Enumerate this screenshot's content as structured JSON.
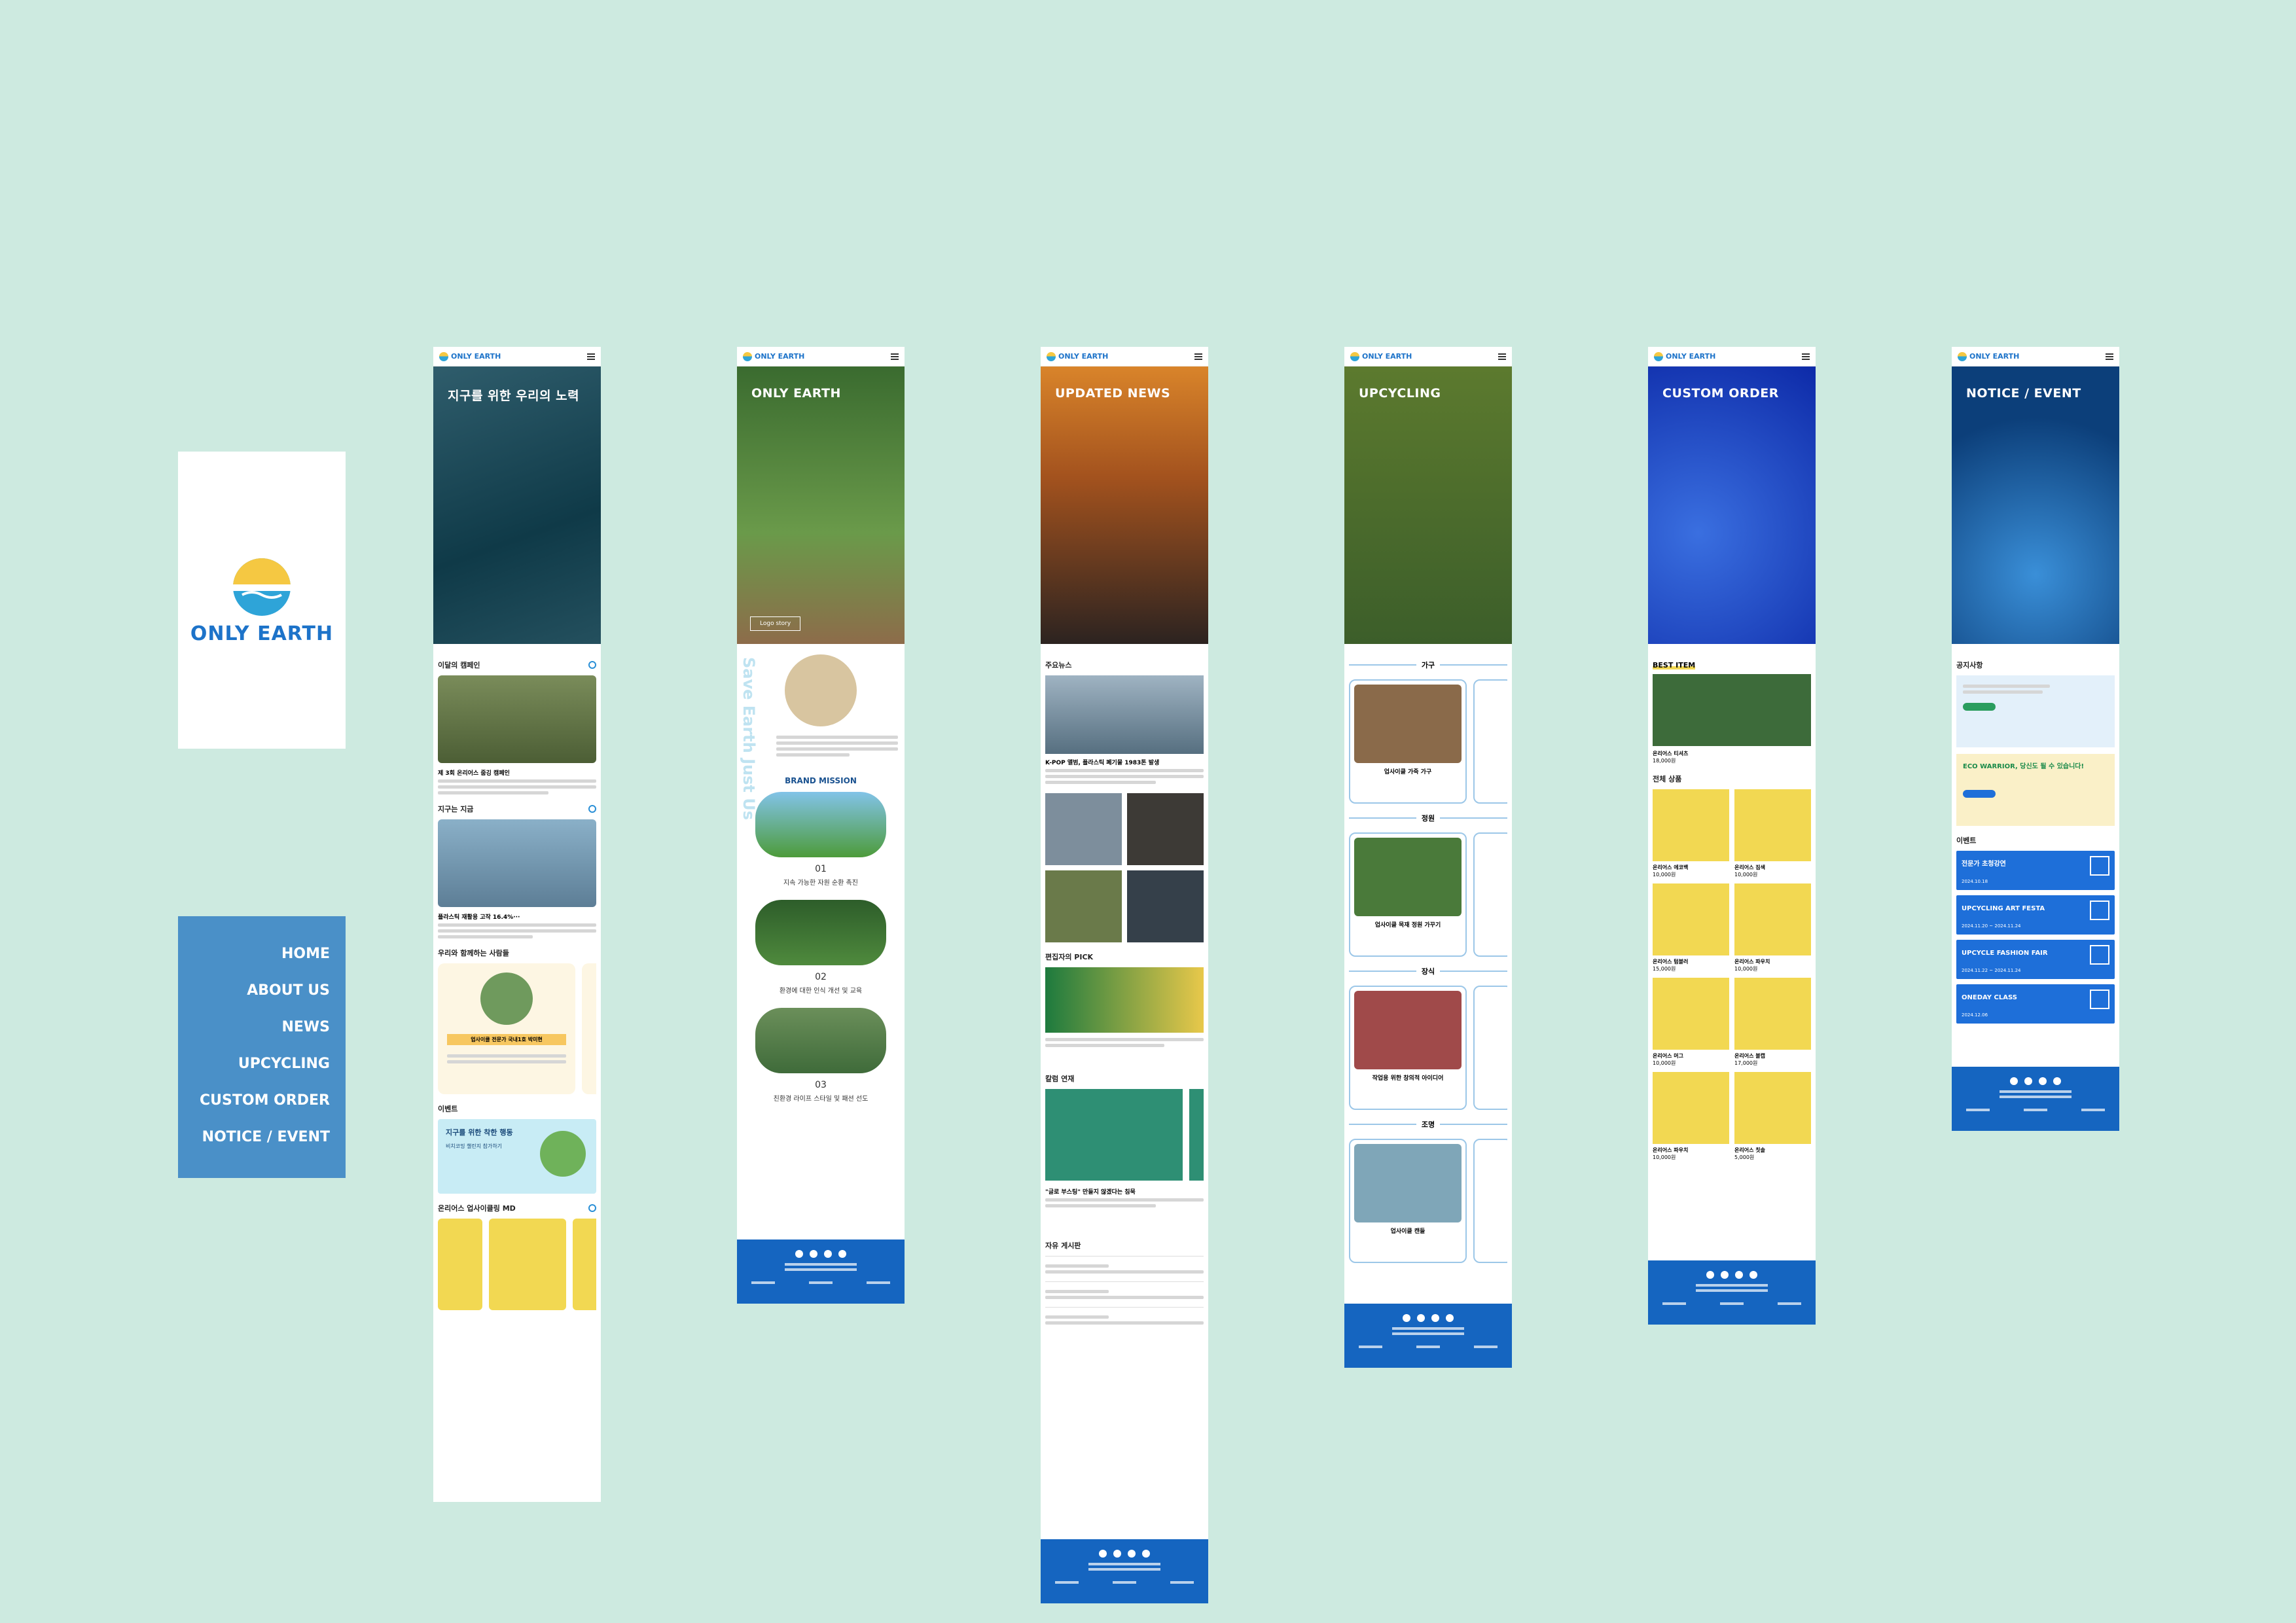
{
  "brand": {
    "name": "ONLY EARTH"
  },
  "nav": [
    "HOME",
    "ABOUT US",
    "NEWS",
    "UPCYCLING",
    "CUSTOM ORDER",
    "NOTICE / EVENT"
  ],
  "colors": {
    "background": "#cdeae0",
    "nav": "#4a90c8",
    "brand_blue": "#1d73c9",
    "footer": "#1565c0"
  },
  "home": {
    "hero_title": "지구를 위한 우리의 노력",
    "sections": [
      "이달의 캠페인",
      "지구는 지금",
      "우리와 함께하는 사람들",
      "이벤트",
      "온리어스 업사이클링 MD"
    ],
    "campaign_title": "제 3회 온리어스 줍깅 캠페인",
    "earth_now_title": "플라스틱 재활용 고작 16.4%···",
    "people_tag": "업사이클 전문가 국내1호 박미현",
    "event_title": "지구를 위한 착한 행동",
    "event_sub": "비치코밍 챌린지 참가하기"
  },
  "about": {
    "hero_title": "ONLY EARTH",
    "hero_btn": "Logo story",
    "vertical_text": "Save Earth Just Us",
    "mission_title": "BRAND MISSION",
    "missions": [
      {
        "num": "01",
        "text": "지속 가능한 자원 순환 촉진"
      },
      {
        "num": "02",
        "text": "환경에 대한 인식 개선 및 교육"
      },
      {
        "num": "03",
        "text": "친환경 라이프 스타일 및 패션 선도"
      }
    ]
  },
  "news": {
    "hero_title": "UPDATED NEWS",
    "sections": [
      "주요뉴스",
      "편집자의 PICK",
      "칼럼 연재",
      "자유 게시판"
    ],
    "main_news": "K-POP 앨범, 플라스틱 폐기물 1983톤 발생",
    "column_title": "\"글로 부스팅\" 만들지 않겠다는 침묵"
  },
  "upcycling": {
    "hero_title": "UPCYCLING",
    "categories": [
      "가구",
      "정원",
      "장식",
      "조명"
    ],
    "items": [
      "업사이클 가죽 가구",
      "업사이클 목재 정원 가꾸기",
      "작업용 위한 창의적 아이디어",
      "업사이클 캔들"
    ]
  },
  "order": {
    "hero_title": "CUSTOM ORDER",
    "best_title": "BEST ITEM",
    "best_item": {
      "name": "온리어스 티셔츠",
      "price": "18,000원"
    },
    "all_title": "전체 상품",
    "products": [
      {
        "name": "온리어스 에코백",
        "price": "10,000원"
      },
      {
        "name": "온리어스 짐색",
        "price": "10,000원"
      },
      {
        "name": "온리어스 텀블러",
        "price": "15,000원"
      },
      {
        "name": "온리어스 파우치",
        "price": "10,000원"
      },
      {
        "name": "온리어스 머그",
        "price": "10,000원"
      },
      {
        "name": "온리어스 볼캡",
        "price": "17,000원"
      },
      {
        "name": "온리어스 파우치",
        "price": "10,000원"
      },
      {
        "name": "온리어스 칫솔",
        "price": "5,000원"
      }
    ]
  },
  "notice": {
    "hero_title": "NOTICE / EVENT",
    "notice_title": "공지사항",
    "banner2": "ECO WARRIOR, 당신도 될 수 있습니다!",
    "event_title": "이벤트",
    "events": [
      {
        "title": "전문가 초청강연",
        "date": "2024.10.18"
      },
      {
        "title": "UPCYCLING ART FESTA",
        "date": "2024.11.20 ~ 2024.11.24"
      },
      {
        "title": "UPCYCLE FASHION FAIR",
        "date": "2024.11.22 ~ 2024.11.24"
      },
      {
        "title": "ONEDAY CLASS",
        "date": "2024.12.06"
      }
    ]
  }
}
